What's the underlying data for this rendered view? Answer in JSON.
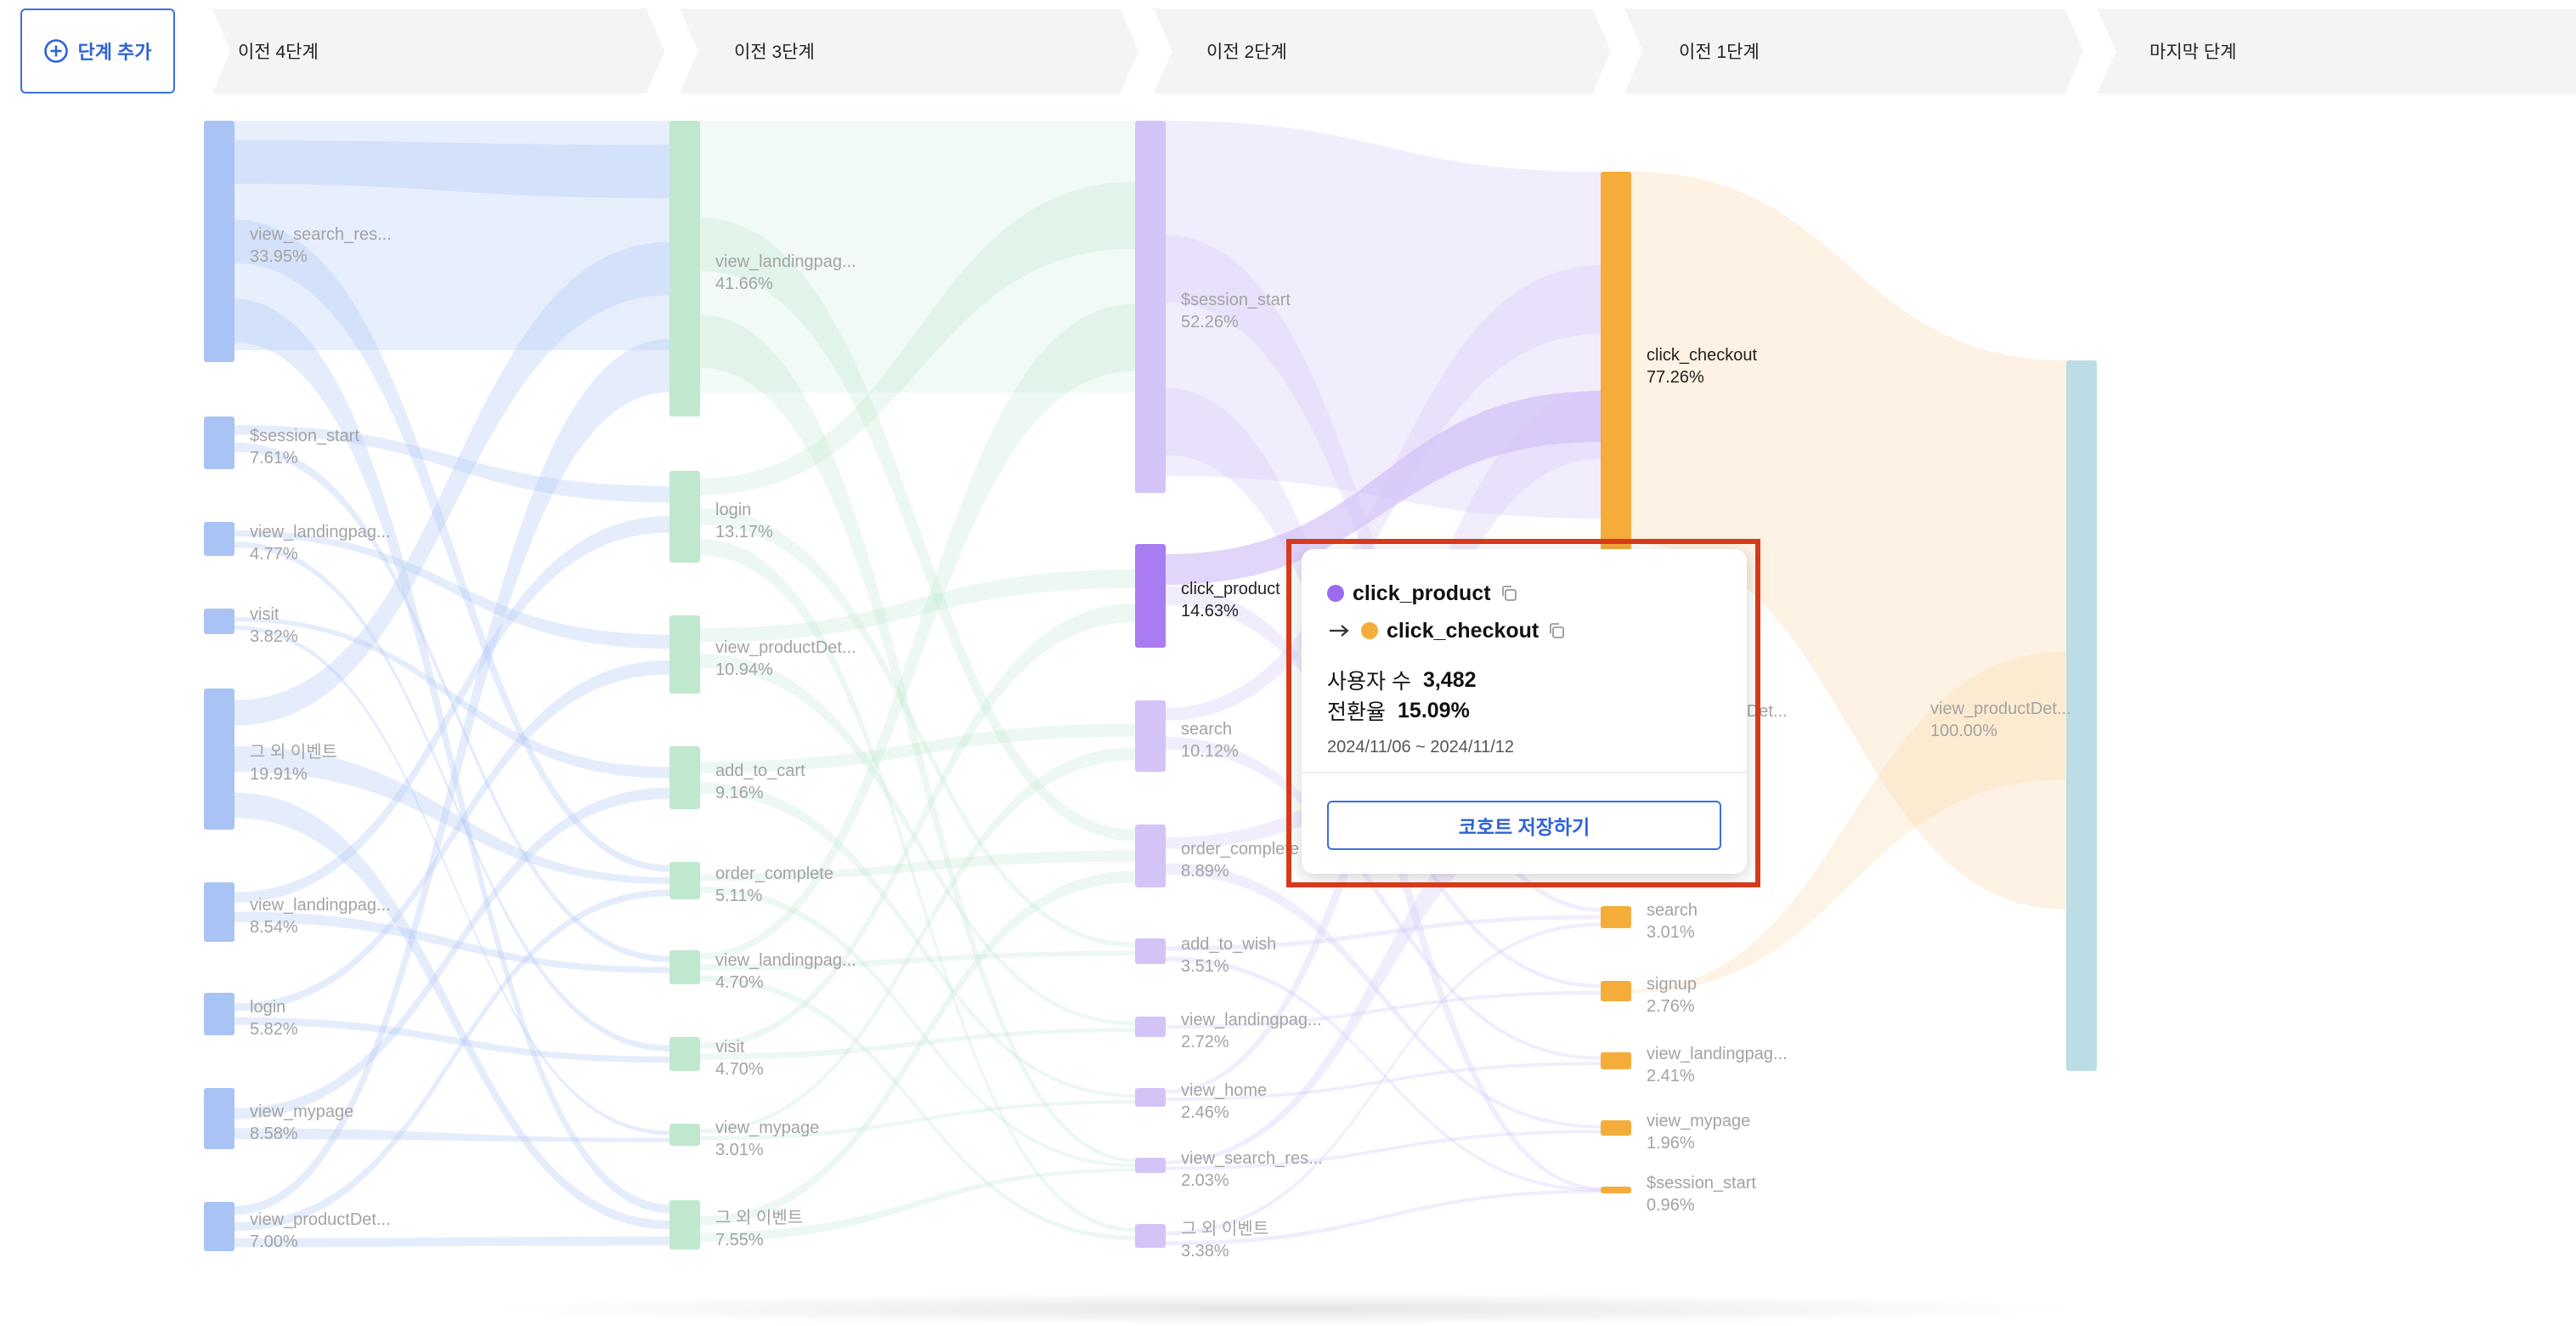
{
  "toolbar": {
    "add_step_label": "단계 추가"
  },
  "stages": [
    "이전 4단계",
    "이전 3단계",
    "이전 2단계",
    "이전 1단계",
    "마지막 단계"
  ],
  "colors": {
    "blue": "#a9c3f5",
    "green": "#bfe8cf",
    "purple": "#d3c3f7",
    "orange": "#f4ad3b",
    "teal": "#bcdce6",
    "highlight": "#d63a1a",
    "accent": "#2f63d6"
  },
  "columns": [
    {
      "color": "blue",
      "nodes": [
        {
          "name": "view_search_res...",
          "pct": "33.95%"
        },
        {
          "name": "$session_start",
          "pct": "7.61%"
        },
        {
          "name": "view_landingpag...",
          "pct": "4.77%"
        },
        {
          "name": "visit",
          "pct": "3.82%"
        },
        {
          "name": "그 외 이벤트",
          "pct": "19.91%"
        },
        {
          "name": "view_landingpag...",
          "pct": "8.54%"
        },
        {
          "name": "login",
          "pct": "5.82%"
        },
        {
          "name": "view_mypage",
          "pct": "8.58%"
        },
        {
          "name": "view_productDet...",
          "pct": "7.00%"
        }
      ]
    },
    {
      "color": "green",
      "nodes": [
        {
          "name": "view_landingpag...",
          "pct": "41.66%"
        },
        {
          "name": "login",
          "pct": "13.17%"
        },
        {
          "name": "view_productDet...",
          "pct": "10.94%"
        },
        {
          "name": "add_to_cart",
          "pct": "9.16%"
        },
        {
          "name": "order_complete",
          "pct": "5.11%"
        },
        {
          "name": "view_landingpag...",
          "pct": "4.70%"
        },
        {
          "name": "visit",
          "pct": "4.70%"
        },
        {
          "name": "view_mypage",
          "pct": "3.01%"
        },
        {
          "name": "그 외 이벤트",
          "pct": "7.55%"
        }
      ]
    },
    {
      "color": "purple",
      "nodes": [
        {
          "name": "$session_start",
          "pct": "52.26%"
        },
        {
          "name": "click_product",
          "pct": "14.63%"
        },
        {
          "name": "search",
          "pct": "10.12%"
        },
        {
          "name": "order_complete",
          "pct": "8.89%"
        },
        {
          "name": "add_to_wish",
          "pct": "3.51%"
        },
        {
          "name": "view_landingpag...",
          "pct": "2.72%"
        },
        {
          "name": "view_home",
          "pct": "2.46%"
        },
        {
          "name": "view_search_res...",
          "pct": "2.03%"
        },
        {
          "name": "그 외 이벤트",
          "pct": "3.38%"
        }
      ]
    },
    {
      "color": "orange",
      "nodes": [
        {
          "name": "click_checkout",
          "pct": "77.26%"
        },
        {
          "name": "view_productDet...",
          "pct": ""
        },
        {
          "name": "search",
          "pct": "3.01%"
        },
        {
          "name": "signup",
          "pct": "2.76%"
        },
        {
          "name": "view_landingpag...",
          "pct": "2.41%"
        },
        {
          "name": "view_mypage",
          "pct": "1.96%"
        },
        {
          "name": "$session_start",
          "pct": "0.96%"
        }
      ]
    },
    {
      "color": "teal",
      "nodes": [
        {
          "name": "view_productDet...",
          "pct": "100.00%"
        }
      ]
    }
  ],
  "tooltip": {
    "from_event": "click_product",
    "to_event": "click_checkout",
    "from_color": "#9b6cf0",
    "to_color": "#f4ad3b",
    "users_label": "사용자 수",
    "users_value": "3,482",
    "conversion_label": "전환율",
    "conversion_value": "15.09%",
    "date_range": "2024/11/06 ~ 2024/11/12",
    "cohort_button": "코호트 저장하기"
  }
}
